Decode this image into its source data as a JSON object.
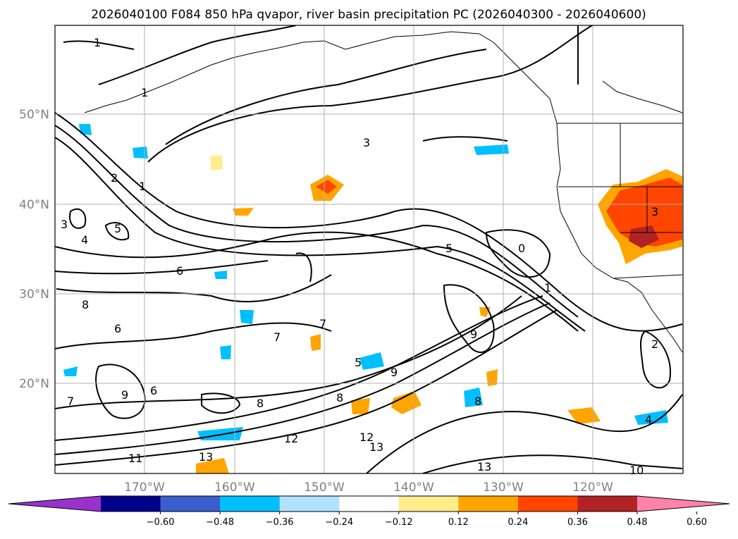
{
  "title": "2026040100 F084 850 hPa qvapor, river basin precipitation PC (2026040300 - 2026040600)",
  "lat_labels": [
    "50°N",
    "40°N",
    "30°N",
    "20°N"
  ],
  "lon_labels": [
    "170°W",
    "160°W",
    "150°W",
    "140°W",
    "130°W",
    "120°W"
  ],
  "colorbar": {
    "ticks": [
      "−0.60",
      "−0.48",
      "−0.36",
      "−0.24",
      "−0.12",
      "0.12",
      "0.24",
      "0.36",
      "0.48",
      "0.60"
    ],
    "colors": [
      "#9932CC",
      "#00008B",
      "#3A5FCD",
      "#00BFFF",
      "#B0E2FF",
      "#FFFFFF",
      "#FFEC8B",
      "#FFA500",
      "#FF4500",
      "#B22222",
      "#FF82AB"
    ]
  },
  "contour_labels": [
    "1",
    "1",
    "1",
    "2",
    "3",
    "3",
    "4",
    "5",
    "5",
    "6",
    "6",
    "7",
    "7",
    "8",
    "8",
    "8",
    "9",
    "9",
    "12",
    "12",
    "13",
    "13",
    "13",
    "0",
    "1",
    "2",
    "3",
    "4",
    "5",
    "6",
    "7",
    "8",
    "9",
    "10",
    "11"
  ]
}
